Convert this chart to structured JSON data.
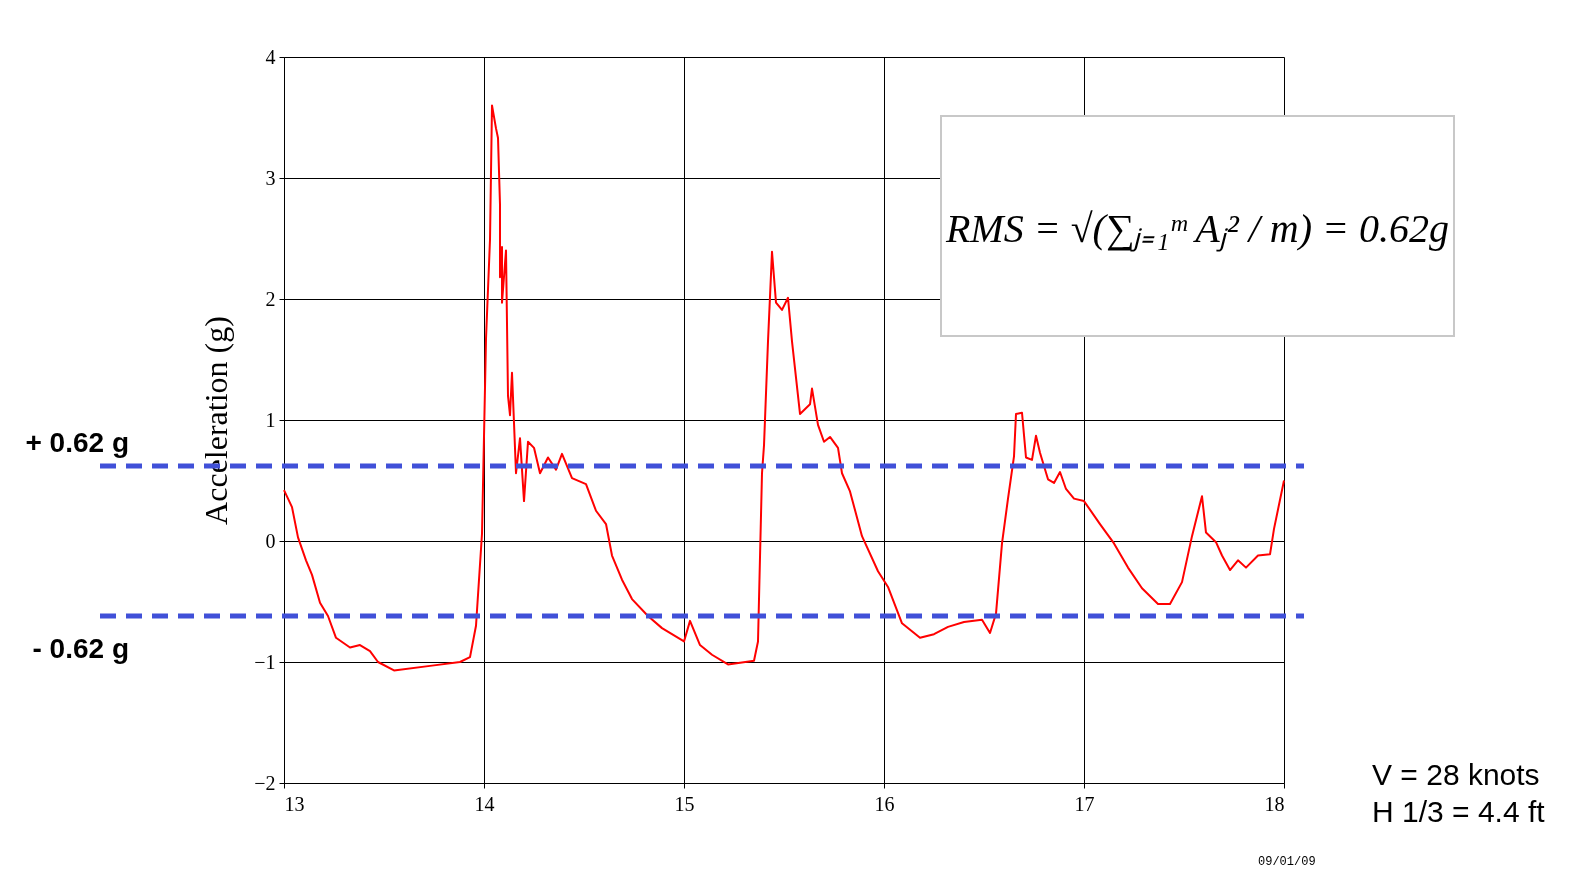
{
  "chart_data": {
    "type": "line",
    "ylabel": "Acceleration (g)",
    "x": [
      13.0,
      13.04,
      13.07,
      13.11,
      13.14,
      13.18,
      13.22,
      13.26,
      13.33,
      13.38,
      13.43,
      13.47,
      13.55,
      13.74,
      13.88,
      13.93,
      13.96,
      13.99,
      14.01,
      14.03,
      14.04,
      14.06,
      14.07,
      14.08,
      14.08,
      14.09,
      14.09,
      14.11,
      14.12,
      14.13,
      14.14,
      14.16,
      14.18,
      14.2,
      14.22,
      14.25,
      14.28,
      14.32,
      14.36,
      14.39,
      14.44,
      14.51,
      14.56,
      14.61,
      14.64,
      14.69,
      14.74,
      14.82,
      14.89,
      15.0,
      15.03,
      15.08,
      15.14,
      15.22,
      15.35,
      15.37,
      15.39,
      15.4,
      15.42,
      15.44,
      15.46,
      15.49,
      15.52,
      15.54,
      15.58,
      15.63,
      15.64,
      15.67,
      15.7,
      15.73,
      15.77,
      15.79,
      15.83,
      15.89,
      15.97,
      16.02,
      16.09,
      16.18,
      16.25,
      16.32,
      16.4,
      16.49,
      16.53,
      16.56,
      16.59,
      16.62,
      16.65,
      16.66,
      16.69,
      16.71,
      16.74,
      16.76,
      16.78,
      16.82,
      16.85,
      16.88,
      16.91,
      16.95,
      17.0,
      17.08,
      17.15,
      17.22,
      17.29,
      17.37,
      17.43,
      17.49,
      17.54,
      17.59,
      17.61,
      17.66,
      17.69,
      17.73,
      17.77,
      17.81,
      17.87,
      17.93,
      17.95,
      18.0
    ],
    "series": [
      {
        "color": "#ff0000",
        "values": [
          0.42,
          0.28,
          0.03,
          -0.16,
          -0.28,
          -0.51,
          -0.62,
          -0.8,
          -0.88,
          -0.86,
          -0.91,
          -1.0,
          -1.07,
          -1.03,
          -1.0,
          -0.96,
          -0.7,
          0.06,
          1.67,
          2.49,
          3.6,
          3.41,
          3.33,
          2.78,
          2.18,
          2.43,
          1.97,
          2.4,
          1.2,
          1.04,
          1.39,
          0.56,
          0.85,
          0.33,
          0.82,
          0.77,
          0.56,
          0.69,
          0.59,
          0.72,
          0.52,
          0.47,
          0.25,
          0.14,
          -0.12,
          -0.32,
          -0.48,
          -0.62,
          -0.72,
          -0.83,
          -0.66,
          -0.86,
          -0.94,
          -1.02,
          -0.99,
          -0.83,
          0.56,
          0.79,
          1.65,
          2.39,
          1.97,
          1.91,
          2.01,
          1.65,
          1.05,
          1.13,
          1.26,
          0.96,
          0.82,
          0.86,
          0.77,
          0.56,
          0.41,
          0.04,
          -0.25,
          -0.38,
          -0.68,
          -0.8,
          -0.77,
          -0.71,
          -0.67,
          -0.65,
          -0.76,
          -0.6,
          -0.02,
          0.35,
          0.7,
          1.05,
          1.06,
          0.69,
          0.67,
          0.87,
          0.73,
          0.51,
          0.48,
          0.57,
          0.43,
          0.35,
          0.33,
          0.14,
          -0.02,
          -0.22,
          -0.39,
          -0.52,
          -0.52,
          -0.34,
          0.04,
          0.37,
          0.07,
          -0.01,
          -0.12,
          -0.24,
          -0.16,
          -0.22,
          -0.12,
          -0.11,
          0.1,
          0.5
        ]
      }
    ],
    "xlim": [
      13,
      18
    ],
    "ylim": [
      -2,
      4
    ],
    "xticks": [
      13,
      14,
      15,
      16,
      17,
      18
    ],
    "yticks": [
      -2,
      -1,
      0,
      1,
      2,
      3,
      4
    ],
    "grid": true,
    "line_style": "solid",
    "marker": "none",
    "ref_lines": [
      {
        "axis": "y",
        "value": 0.62,
        "label": "+ 0.62 g",
        "color": "#4050d8",
        "line_style": "dashed"
      },
      {
        "axis": "y",
        "value": -0.62,
        "label": "- 0.62 g",
        "color": "#4050d8",
        "line_style": "dashed"
      }
    ],
    "annotations": [
      "RMS = √(∑ⱼ₌₁ᵐ Aⱼ² / m) = 0.62g",
      "V = 28 knots",
      "H 1/3 = 4.4 ft",
      "09/01/09"
    ]
  }
}
